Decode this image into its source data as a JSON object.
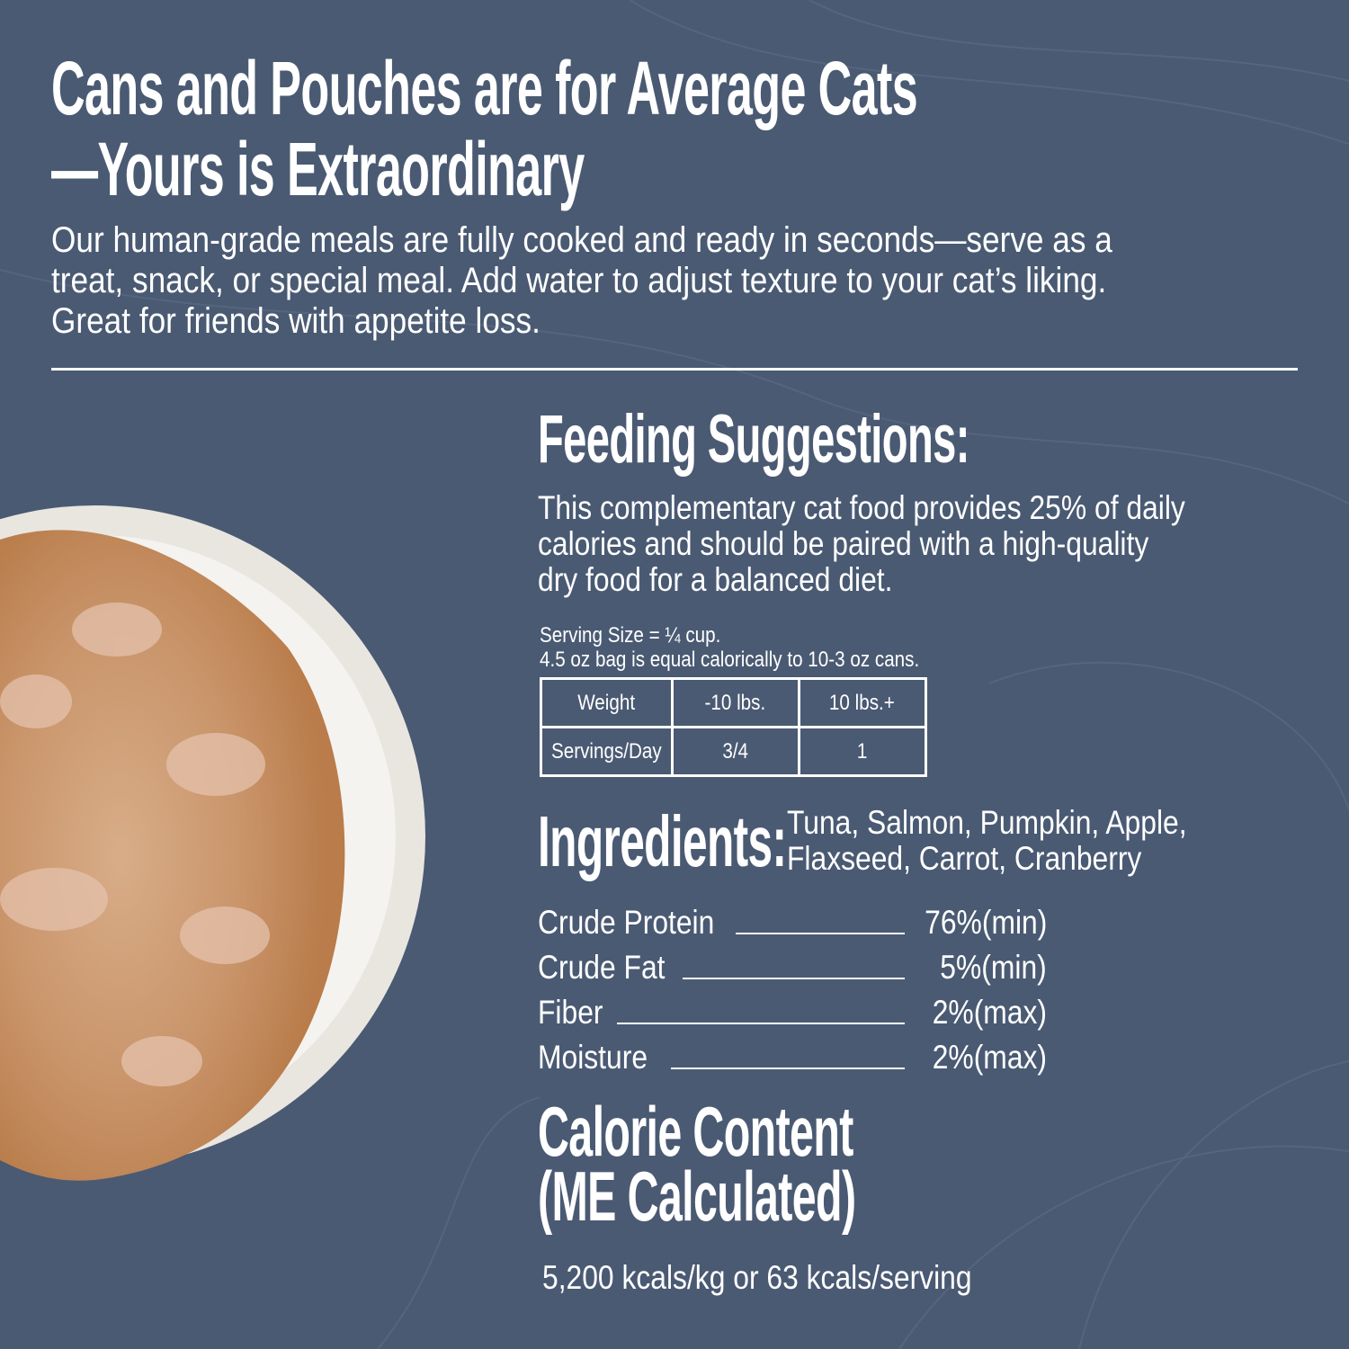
{
  "header": {
    "title_line1": "Cans and Pouches are for Average Cats",
    "title_line2": "—Yours is Extraordinary",
    "description_lines": [
      "Our human-grade meals are fully cooked and ready in seconds—serve as a",
      "treat, snack, or special meal. Add water to adjust texture to your cat’s liking.",
      "Great for friends with appetite loss."
    ]
  },
  "feeding": {
    "heading": "Feeding Suggestions:",
    "paragraph_lines": [
      "This complementary cat food provides 25% of daily",
      "calories and should be paired with a high-quality",
      "dry food for a balanced diet."
    ],
    "serving_size": "Serving Size = ¼ cup.",
    "equivalence": "4.5 oz bag is equal calorically to 10-3 oz cans.",
    "table": {
      "rows": [
        [
          "Weight",
          "-10 lbs.",
          "10 lbs.+"
        ],
        [
          "Servings/Day",
          "3/4",
          "1"
        ]
      ]
    }
  },
  "ingredients": {
    "heading": "Ingredients:",
    "lines": [
      "Tuna, Salmon, Pumpkin, Apple,",
      "Flaxseed, Carrot, Cranberry"
    ]
  },
  "analysis": [
    {
      "label": "Crude Protein",
      "value": "76%(min)"
    },
    {
      "label": "Crude Fat",
      "value": "5%(min)"
    },
    {
      "label": "Fiber",
      "value": "2%(max)"
    },
    {
      "label": "Moisture",
      "value": "2%(max)"
    }
  ],
  "calories": {
    "heading_line1": "Calorie Content",
    "heading_line2": "(ME Calculated)",
    "value": "5,200 kcals/kg or 63 kcals/serving"
  },
  "colors": {
    "background": "#4a5a73",
    "text": "#ffffff"
  }
}
